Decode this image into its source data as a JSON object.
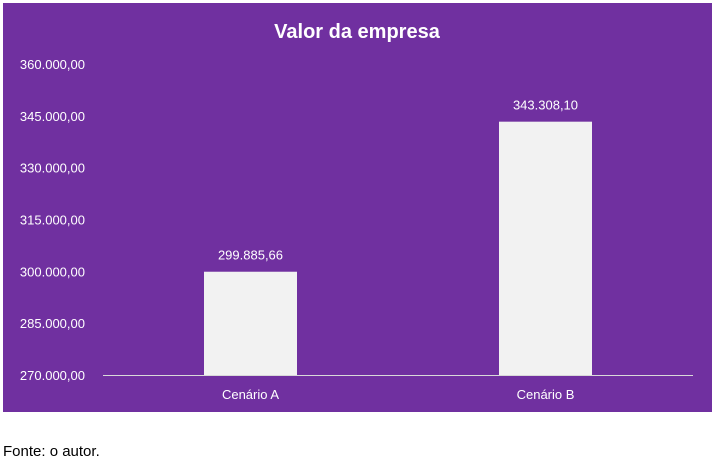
{
  "chart_data": {
    "type": "bar",
    "title": "Valor da empresa",
    "categories": [
      "Cenário A",
      "Cenário B"
    ],
    "values": [
      299885.66,
      343308.1
    ],
    "value_labels": [
      "299.885,66",
      "343.308,10"
    ],
    "ylim": [
      270000,
      360000
    ],
    "yticks": [
      270000,
      285000,
      300000,
      315000,
      330000,
      345000,
      360000
    ],
    "ytick_labels": [
      "270.000,00",
      "285.000,00",
      "300.000,00",
      "315.000,00",
      "330.000,00",
      "345.000,00",
      "360.000,00"
    ],
    "xlabel": "",
    "ylabel": "",
    "grid": false,
    "legend": "none",
    "background_color": "#7030a0",
    "bar_color": "#f2f2f2",
    "text_color": "#ffffff"
  },
  "caption": "Fonte: o autor."
}
